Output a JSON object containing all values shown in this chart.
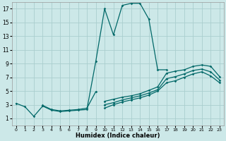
{
  "xlabel": "Humidex (Indice chaleur)",
  "bg_color": "#cce8e8",
  "grid_color": "#aacece",
  "line_color": "#006868",
  "xlim": [
    -0.5,
    23.5
  ],
  "ylim": [
    0,
    18
  ],
  "xticks": [
    0,
    1,
    2,
    3,
    4,
    5,
    6,
    7,
    8,
    9,
    10,
    11,
    12,
    13,
    14,
    15,
    16,
    17,
    18,
    19,
    20,
    21,
    22,
    23
  ],
  "yticks": [
    1,
    3,
    5,
    7,
    9,
    11,
    13,
    15,
    17
  ],
  "lines": [
    {
      "x": [
        0,
        1,
        2,
        3,
        4,
        5,
        6,
        7,
        8,
        9,
        10,
        11,
        12,
        13,
        14,
        15,
        16,
        17
      ],
      "y": [
        3.2,
        2.7,
        1.3,
        2.8,
        2.2,
        2.0,
        2.1,
        2.2,
        2.3,
        9.3,
        17.0,
        13.2,
        17.5,
        17.8,
        17.8,
        15.5,
        8.1,
        8.1
      ]
    },
    {
      "x": [
        3,
        4,
        5,
        6,
        7,
        8,
        9
      ],
      "y": [
        2.9,
        2.3,
        2.1,
        2.2,
        2.3,
        2.5,
        4.9
      ]
    },
    {
      "x": [
        10,
        11,
        12,
        13,
        14,
        15,
        16,
        17,
        18,
        19,
        20,
        21,
        22,
        23
      ],
      "y": [
        3.5,
        3.8,
        4.1,
        4.3,
        4.6,
        5.1,
        5.6,
        7.6,
        7.9,
        8.1,
        8.6,
        8.8,
        8.6,
        7.1
      ]
    },
    {
      "x": [
        10,
        11,
        12,
        13,
        14,
        15,
        16,
        17,
        18,
        19,
        20,
        21,
        22,
        23
      ],
      "y": [
        3.0,
        3.3,
        3.7,
        4.0,
        4.3,
        4.7,
        5.2,
        6.8,
        7.1,
        7.5,
        8.0,
        8.2,
        7.8,
        6.6
      ]
    },
    {
      "x": [
        10,
        11,
        12,
        13,
        14,
        15,
        16,
        17,
        18,
        19,
        20,
        21,
        22,
        23
      ],
      "y": [
        2.5,
        3.0,
        3.4,
        3.7,
        4.0,
        4.4,
        5.0,
        6.2,
        6.5,
        7.0,
        7.5,
        7.8,
        7.2,
        6.2
      ]
    }
  ]
}
